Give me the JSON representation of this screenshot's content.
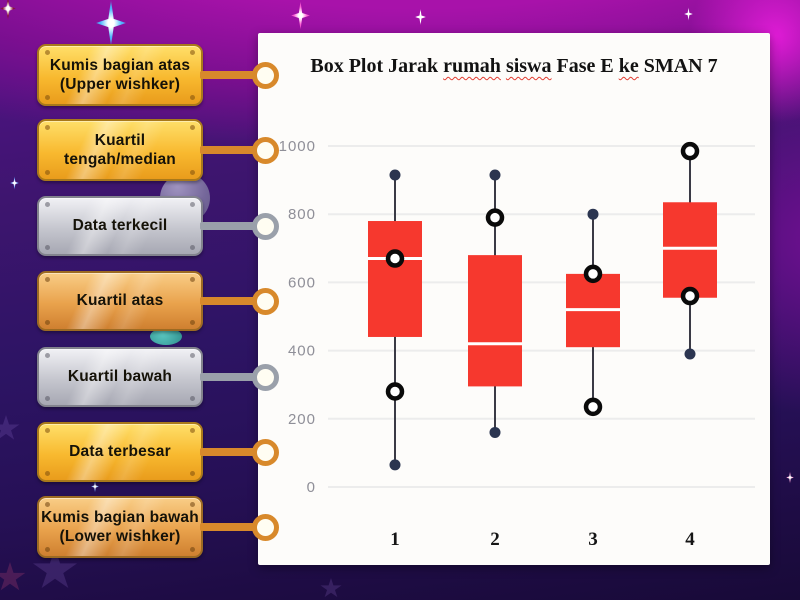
{
  "labels": [
    {
      "line1": "Kumis bagian atas",
      "line2": "(Upper wishker)",
      "variant": "gold"
    },
    {
      "line1": "Kuartil",
      "line2": "tengah/median",
      "variant": "gold"
    },
    {
      "line1": "Data terkecil",
      "line2": "",
      "variant": "silver"
    },
    {
      "line1": "Kuartil atas",
      "line2": "",
      "variant": "copper"
    },
    {
      "line1": "Kuartil bawah",
      "line2": "",
      "variant": "silver"
    },
    {
      "line1": "Data terbesar",
      "line2": "",
      "variant": "gold"
    },
    {
      "line1": "Kumis bagian bawah",
      "line2": "(Lower wishker)",
      "variant": "copper"
    }
  ],
  "chart_data": {
    "type": "box",
    "title": "Box Plot Jarak rumah siswa Fase E ke SMAN 7",
    "title_parts": [
      {
        "text": "Box Plot Jarak ",
        "misspelled": false
      },
      {
        "text": "rumah",
        "misspelled": true
      },
      {
        "text": " ",
        "misspelled": false
      },
      {
        "text": "siswa",
        "misspelled": true
      },
      {
        "text": " Fase E ",
        "misspelled": false
      },
      {
        "text": "ke",
        "misspelled": true
      },
      {
        "text": " SMAN 7",
        "misspelled": false
      }
    ],
    "categories": [
      "1",
      "2",
      "3",
      "4"
    ],
    "groups": [
      {
        "label": "1",
        "min": 65,
        "q1": 440,
        "median": 670,
        "q3": 780,
        "max": 915,
        "dots": [
          915,
          65
        ],
        "pins": [
          670,
          280
        ]
      },
      {
        "label": "2",
        "min": 160,
        "q1": 295,
        "median": 420,
        "q3": 680,
        "max": 915,
        "dots": [
          915,
          160
        ],
        "pins": [
          790
        ]
      },
      {
        "label": "3",
        "min": 235,
        "q1": 410,
        "median": 520,
        "q3": 625,
        "max": 800,
        "dots": [
          800
        ],
        "pins": [
          625,
          235
        ]
      },
      {
        "label": "4",
        "min": 390,
        "q1": 555,
        "median": 700,
        "q3": 835,
        "max": 985,
        "dots": [
          390
        ],
        "pins": [
          985,
          560
        ]
      }
    ],
    "y_ticks": [
      0,
      200,
      400,
      600,
      800,
      1000
    ],
    "ylim": [
      0,
      1050
    ],
    "grid": true,
    "colors": {
      "box": "#f6382e",
      "median_line": "#ffffff",
      "whisker": "#3a3a45",
      "dot": "#2b3550",
      "pin_ring": "#0a0a0a",
      "pin_fill": "#ffffff",
      "gridline": "#ececec",
      "tick_label": "#8f8f98",
      "category_label": "#151515"
    }
  },
  "theme": {
    "background_purple": "#2d1464",
    "top_band_magenta": "#a812aa",
    "panel": "#fdfcfa",
    "gold_accent": "#d8892b",
    "silver_accent": "#9aa0aa"
  }
}
